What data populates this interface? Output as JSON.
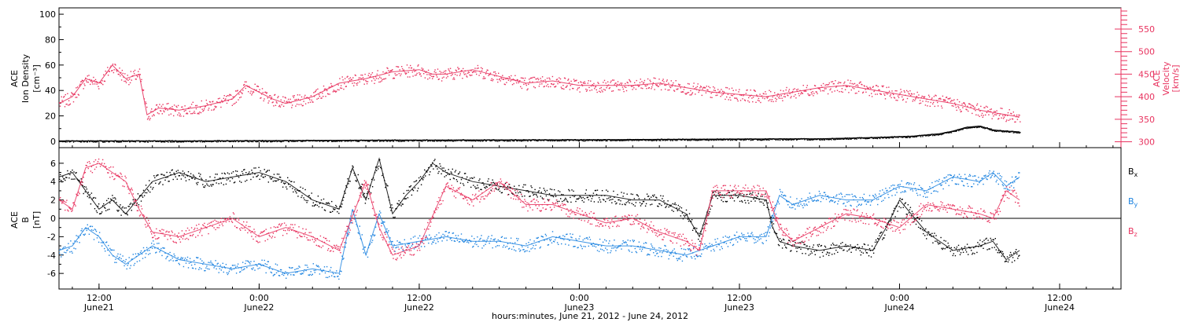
{
  "chart_data": {
    "type": "scatter",
    "xlabel": "hours:minutes, June 21, 2012 - June 24, 2012",
    "x_ticks": [
      {
        "time": "12:00",
        "date": "June21",
        "hours": 12
      },
      {
        "time": "0:00",
        "date": "June22",
        "hours": 24
      },
      {
        "time": "12:00",
        "date": "June22",
        "hours": 36
      },
      {
        "time": "0:00",
        "date": "June23",
        "hours": 48
      },
      {
        "time": "12:00",
        "date": "June23",
        "hours": 60
      },
      {
        "time": "0:00",
        "date": "June24",
        "hours": 72
      },
      {
        "time": "12:00",
        "date": "June24",
        "hours": 84
      }
    ],
    "xlim_hours": [
      9.0,
      88.6
    ],
    "colors": {
      "black": "#000000",
      "magenta": "#e8335f",
      "blue": "#1f84e0"
    },
    "panels": [
      {
        "id": "top",
        "ylabel_left": [
          "ACE",
          "Ion Density",
          "[cm⁻³]"
        ],
        "ylim_left": [
          -5,
          105
        ],
        "yticks_left": [
          0,
          20,
          40,
          60,
          80,
          100
        ],
        "ylabel_right": [
          "ACE",
          "Velocity",
          "[km/s]"
        ],
        "ylim_right": [
          287,
          597
        ],
        "yticks_right": [
          300,
          350,
          400,
          450,
          500,
          550
        ],
        "series": [
          {
            "label": "",
            "color": "magenta",
            "axis": "right",
            "hours": [
              9.0,
              10.0,
              11.0,
              12.0,
              13.0,
              14.0,
              15.0,
              15.6,
              16.5,
              18.0,
              20.0,
              22.0,
              23.0,
              24.0,
              25.0,
              26.0,
              28.0,
              30.0,
              32.0,
              34.0,
              36.0,
              37.0,
              38.0,
              40.0,
              42.0,
              44.0,
              46.0,
              48.0,
              50.0,
              52.0,
              54.0,
              56.0,
              58.0,
              60.0,
              62.0,
              64.0,
              66.0,
              68.0,
              70.0,
              72.0,
              74.0,
              76.0,
              78.0,
              79.0,
              80.0,
              81.0
            ],
            "values": [
              385,
              400,
              440,
              430,
              470,
              440,
              450,
              360,
              375,
              370,
              380,
              395,
              425,
              410,
              395,
              385,
              400,
              430,
              440,
              455,
              460,
              450,
              450,
              460,
              445,
              430,
              435,
              425,
              425,
              425,
              430,
              420,
              410,
              405,
              400,
              410,
              420,
              425,
              415,
              405,
              395,
              385,
              370,
              365,
              360,
              355
            ]
          },
          {
            "label": "",
            "color": "black",
            "axis": "left",
            "hours": [
              9.0,
              20.0,
              30.0,
              36.0,
              48.0,
              60.0,
              66.0,
              70.0,
              73.0,
              75.0,
              76.0,
              77.0,
              78.0,
              79.0,
              80.0,
              81.0
            ],
            "values": [
              0.3,
              0.4,
              0.8,
              1.0,
              1.2,
              1.8,
              2.0,
              3.0,
              4.0,
              6.0,
              8.0,
              11.0,
              12.0,
              9.0,
              8.0,
              7.5
            ]
          }
        ]
      },
      {
        "id": "bottom",
        "ylabel_left": [
          "ACE",
          "B",
          "[nT]"
        ],
        "ylim_left": [
          -7.7,
          7.7
        ],
        "yticks_left": [
          -6,
          -4,
          -2,
          0,
          2,
          4,
          6
        ],
        "series": [
          {
            "label": "Bx",
            "color": "black",
            "hours": [
              9.0,
              10.0,
              11.0,
              12.0,
              13.0,
              14.0,
              16.0,
              18.0,
              20.0,
              22.0,
              24.0,
              26.0,
              28.0,
              30.0,
              31.0,
              32.0,
              33.0,
              34.0,
              35.0,
              36.0,
              37.0,
              38.0,
              40.0,
              42.0,
              44.0,
              46.0,
              48.0,
              50.0,
              52.0,
              54.0,
              56.0,
              57.0,
              58.0,
              60.0,
              62.0,
              62.5,
              63.0,
              64.0,
              66.0,
              68.0,
              70.0,
              71.0,
              72.0,
              74.0,
              76.0,
              78.0,
              79.0,
              80.0,
              81.0
            ],
            "values": [
              4.5,
              5.0,
              3.0,
              1.0,
              2.0,
              0.5,
              4.0,
              5.0,
              4.0,
              4.5,
              5.0,
              4.0,
              2.0,
              1.0,
              5.5,
              2.0,
              6.5,
              0.5,
              2.5,
              4.0,
              6.0,
              5.0,
              4.0,
              3.5,
              3.0,
              2.5,
              2.5,
              2.5,
              2.0,
              2.0,
              0.5,
              -2.0,
              2.5,
              2.5,
              2.0,
              -1.0,
              -2.5,
              -3.0,
              -3.5,
              -3.0,
              -3.5,
              -1.0,
              2.0,
              -1.5,
              -3.5,
              -3.0,
              -2.5,
              -4.5,
              -3.5
            ]
          },
          {
            "label": "By",
            "color": "blue",
            "hours": [
              9.0,
              10.0,
              11.0,
              12.0,
              13.0,
              14.0,
              16.0,
              18.0,
              20.0,
              22.0,
              24.0,
              26.0,
              28.0,
              30.0,
              31.0,
              32.0,
              33.0,
              34.0,
              36.0,
              38.0,
              40.0,
              42.0,
              44.0,
              46.0,
              48.0,
              50.0,
              52.0,
              54.0,
              56.0,
              58.0,
              60.0,
              62.0,
              63.0,
              64.0,
              66.0,
              68.0,
              70.0,
              72.0,
              74.0,
              76.0,
              78.0,
              79.0,
              80.0,
              81.0
            ],
            "values": [
              -3.5,
              -3.0,
              -1.0,
              -2.0,
              -4.0,
              -5.0,
              -3.0,
              -4.5,
              -5.0,
              -5.5,
              -5.0,
              -6.0,
              -5.5,
              -6.0,
              1.0,
              -4.0,
              0.5,
              -3.0,
              -2.5,
              -2.0,
              -2.5,
              -2.5,
              -3.0,
              -2.0,
              -2.5,
              -3.0,
              -3.0,
              -3.5,
              -4.0,
              -3.0,
              -2.0,
              -2.0,
              2.5,
              1.5,
              2.5,
              2.0,
              2.0,
              3.5,
              3.0,
              4.5,
              4.0,
              5.0,
              3.5,
              4.5
            ]
          },
          {
            "label": "Bz",
            "color": "magenta",
            "hours": [
              9.0,
              10.0,
              11.0,
              12.0,
              13.0,
              14.0,
              15.0,
              16.0,
              18.0,
              20.0,
              22.0,
              24.0,
              26.0,
              28.0,
              30.0,
              32.0,
              33.0,
              34.0,
              36.0,
              38.0,
              40.0,
              42.0,
              44.0,
              46.0,
              48.0,
              50.0,
              52.0,
              54.0,
              56.0,
              57.0,
              58.0,
              60.0,
              62.0,
              63.0,
              64.0,
              66.0,
              68.0,
              70.0,
              72.0,
              74.0,
              76.0,
              78.0,
              79.0,
              80.0,
              81.0
            ],
            "values": [
              2.0,
              1.0,
              5.5,
              6.0,
              5.0,
              4.0,
              1.0,
              -1.5,
              -2.0,
              -1.0,
              0.0,
              -2.0,
              -1.0,
              -2.0,
              -3.5,
              4.0,
              -1.0,
              -4.0,
              -3.0,
              3.5,
              2.0,
              4.0,
              1.5,
              1.5,
              0.5,
              -0.5,
              0.0,
              -1.5,
              -2.5,
              -3.5,
              3.0,
              3.0,
              3.0,
              -1.0,
              -2.5,
              -1.0,
              0.5,
              0.0,
              -1.0,
              1.5,
              1.0,
              0.5,
              0.0,
              3.0,
              2.0
            ]
          }
        ]
      }
    ]
  }
}
